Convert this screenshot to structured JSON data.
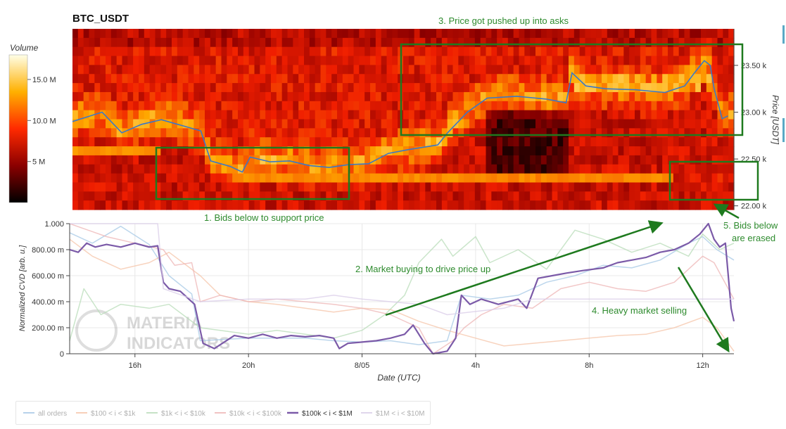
{
  "chart_data": [
    {
      "type": "heatmap",
      "title": "BTC_USDT",
      "ylabel": "Price [USDT]",
      "yticks": [
        "22.00 k",
        "22.50 k",
        "23.00 k",
        "23.50 k"
      ],
      "ylim": [
        21960,
        23890
      ],
      "colorbar": {
        "label": "Volume",
        "ticks": [
          "5 M",
          "10.0 M",
          "15.0 M"
        ],
        "tick_values": [
          5,
          10,
          15
        ],
        "range": [
          0,
          18
        ]
      },
      "price_line": {
        "color": "#3b78c8",
        "points": [
          [
            0,
            22900
          ],
          [
            1.5,
            23000
          ],
          [
            2.5,
            22780
          ],
          [
            3.5,
            22870
          ],
          [
            4.5,
            22920
          ],
          [
            6.5,
            22800
          ],
          [
            7.0,
            22480
          ],
          [
            8.0,
            22420
          ],
          [
            8.6,
            22360
          ],
          [
            9.0,
            22520
          ],
          [
            10.0,
            22470
          ],
          [
            11.0,
            22480
          ],
          [
            12.0,
            22430
          ],
          [
            13.0,
            22410
          ],
          [
            14.0,
            22440
          ],
          [
            15.0,
            22450
          ],
          [
            16.0,
            22560
          ],
          [
            17.0,
            22600
          ],
          [
            18.5,
            22650
          ],
          [
            19.0,
            22780
          ],
          [
            20.0,
            23000
          ],
          [
            21.0,
            23150
          ],
          [
            22.5,
            23170
          ],
          [
            24.0,
            23140
          ],
          [
            25.0,
            23100
          ],
          [
            25.3,
            23420
          ],
          [
            26.0,
            23280
          ],
          [
            27.0,
            23250
          ],
          [
            28.5,
            23240
          ],
          [
            30.0,
            23210
          ],
          [
            31.0,
            23280
          ],
          [
            31.5,
            23420
          ],
          [
            32.0,
            23550
          ],
          [
            32.3,
            23500
          ],
          [
            32.5,
            23250
          ],
          [
            32.9,
            22930
          ],
          [
            33.2,
            22960
          ]
        ]
      },
      "annotations": [
        {
          "text": "3. Price got pushed up into asks"
        },
        {
          "text": "1. Bids below to support price"
        },
        {
          "text": "5. Bids below are erased",
          "lines": [
            "5. Bids below",
            "are erased"
          ]
        }
      ]
    },
    {
      "type": "line",
      "xlabel": "Date (UTC)",
      "ylabel": "Normalized CVD [arb. u.]",
      "x_ticks": [
        "16h",
        "20h",
        "8/05",
        "4h",
        "8h",
        "12h"
      ],
      "x_tick_values": [
        16,
        20,
        24,
        28,
        32,
        36
      ],
      "xlim": [
        13.7,
        37.1
      ],
      "y_ticks": [
        "0",
        "200.00 m",
        "400.00 m",
        "600.00 m",
        "800.00 m",
        "1.000"
      ],
      "y_tick_values": [
        0,
        0.2,
        0.4,
        0.6,
        0.8,
        1.0
      ],
      "ylim": [
        0,
        1.0
      ],
      "grid": true,
      "legend_position": "bottom",
      "series": [
        {
          "name": "all orders",
          "color": "#a6c8e6",
          "faded": true,
          "points": [
            [
              13.7,
              0.93
            ],
            [
              14.5,
              0.85
            ],
            [
              15.5,
              0.98
            ],
            [
              16.5,
              0.84
            ],
            [
              17.2,
              0.6
            ],
            [
              18.0,
              0.46
            ],
            [
              18.3,
              0.1
            ],
            [
              20,
              0.12
            ],
            [
              22,
              0.12
            ],
            [
              23,
              0.1
            ],
            [
              24,
              0.09
            ],
            [
              25,
              0.1
            ],
            [
              26,
              0.07
            ],
            [
              27,
              0.1
            ],
            [
              27.5,
              0.45
            ],
            [
              28.5,
              0.42
            ],
            [
              29.5,
              0.45
            ],
            [
              30.5,
              0.55
            ],
            [
              31.5,
              0.6
            ],
            [
              32.5,
              0.68
            ],
            [
              33.5,
              0.66
            ],
            [
              34.5,
              0.72
            ],
            [
              35.5,
              0.85
            ],
            [
              36,
              0.9
            ],
            [
              36.5,
              0.8
            ],
            [
              37.1,
              0.72
            ]
          ]
        },
        {
          "name": "$100 < i < $1k",
          "color": "#f6c4a8",
          "faded": true,
          "points": [
            [
              13.7,
              0.88
            ],
            [
              14.5,
              0.75
            ],
            [
              15.5,
              0.65
            ],
            [
              16.5,
              0.7
            ],
            [
              17.2,
              0.78
            ],
            [
              18.3,
              0.6
            ],
            [
              19,
              0.45
            ],
            [
              20,
              0.4
            ],
            [
              21,
              0.38
            ],
            [
              22,
              0.35
            ],
            [
              23,
              0.32
            ],
            [
              24,
              0.35
            ],
            [
              25,
              0.34
            ],
            [
              26,
              0.25
            ],
            [
              27,
              0.18
            ],
            [
              28,
              0.12
            ],
            [
              29,
              0.06
            ],
            [
              30,
              0.08
            ],
            [
              31,
              0.1
            ],
            [
              32,
              0.12
            ],
            [
              33,
              0.14
            ],
            [
              34,
              0.15
            ],
            [
              35,
              0.2
            ],
            [
              36,
              0.28
            ],
            [
              36.5,
              0.2
            ],
            [
              37.1,
              0.02
            ]
          ]
        },
        {
          "name": "$1k < i < $10k",
          "color": "#b8dcb8",
          "faded": true,
          "points": [
            [
              13.7,
              0.1
            ],
            [
              14.2,
              0.5
            ],
            [
              14.8,
              0.3
            ],
            [
              15.5,
              0.38
            ],
            [
              16.5,
              0.35
            ],
            [
              17.2,
              0.38
            ],
            [
              18.3,
              0.2
            ],
            [
              19,
              0.18
            ],
            [
              20,
              0.15
            ],
            [
              21,
              0.18
            ],
            [
              22,
              0.15
            ],
            [
              23,
              0.12
            ],
            [
              24,
              0.18
            ],
            [
              24.8,
              0.3
            ],
            [
              25.5,
              0.45
            ],
            [
              26,
              0.7
            ],
            [
              26.8,
              0.88
            ],
            [
              27.2,
              0.75
            ],
            [
              28,
              0.9
            ],
            [
              28.5,
              0.7
            ],
            [
              29.5,
              0.8
            ],
            [
              30.5,
              0.65
            ],
            [
              31.5,
              0.95
            ],
            [
              32.5,
              0.88
            ],
            [
              33.5,
              0.78
            ],
            [
              34.5,
              0.85
            ],
            [
              35.5,
              0.75
            ],
            [
              36,
              0.92
            ],
            [
              36.6,
              0.8
            ],
            [
              37.1,
              0.85
            ]
          ]
        },
        {
          "name": "$10k < i < $100k",
          "color": "#eeb4b4",
          "faded": true,
          "points": [
            [
              13.7,
              1.0
            ],
            [
              15,
              0.9
            ],
            [
              16,
              0.85
            ],
            [
              17,
              0.8
            ],
            [
              17.4,
              0.68
            ],
            [
              18,
              0.7
            ],
            [
              18.3,
              0.4
            ],
            [
              19,
              0.45
            ],
            [
              20,
              0.4
            ],
            [
              21,
              0.42
            ],
            [
              22,
              0.4
            ],
            [
              23,
              0.38
            ],
            [
              24,
              0.35
            ],
            [
              25,
              0.3
            ],
            [
              26,
              0.2
            ],
            [
              26.5,
              0.0
            ],
            [
              27.2,
              0.1
            ],
            [
              27.6,
              0.2
            ],
            [
              28.2,
              0.3
            ],
            [
              29,
              0.38
            ],
            [
              30,
              0.35
            ],
            [
              31,
              0.5
            ],
            [
              32,
              0.55
            ],
            [
              33,
              0.5
            ],
            [
              34,
              0.48
            ],
            [
              35,
              0.55
            ],
            [
              36,
              0.75
            ],
            [
              36.4,
              0.7
            ],
            [
              37.1,
              0.42
            ]
          ]
        },
        {
          "name": "$100k < i < $1M",
          "color": "#7b5aa8",
          "faded": false,
          "points": [
            [
              13.7,
              0.8
            ],
            [
              14.0,
              0.78
            ],
            [
              14.3,
              0.85
            ],
            [
              14.6,
              0.82
            ],
            [
              15.0,
              0.84
            ],
            [
              15.5,
              0.82
            ],
            [
              16.0,
              0.85
            ],
            [
              16.5,
              0.82
            ],
            [
              16.8,
              0.83
            ],
            [
              17.0,
              0.55
            ],
            [
              17.2,
              0.5
            ],
            [
              17.6,
              0.48
            ],
            [
              17.9,
              0.42
            ],
            [
              18.1,
              0.38
            ],
            [
              18.4,
              0.08
            ],
            [
              18.8,
              0.04
            ],
            [
              19.5,
              0.14
            ],
            [
              20.0,
              0.12
            ],
            [
              20.5,
              0.15
            ],
            [
              21.0,
              0.12
            ],
            [
              21.5,
              0.14
            ],
            [
              22.0,
              0.13
            ],
            [
              22.5,
              0.14
            ],
            [
              23.0,
              0.12
            ],
            [
              23.2,
              0.04
            ],
            [
              23.5,
              0.08
            ],
            [
              24.0,
              0.09
            ],
            [
              24.5,
              0.1
            ],
            [
              25.0,
              0.12
            ],
            [
              25.5,
              0.15
            ],
            [
              25.8,
              0.22
            ],
            [
              26.2,
              0.08
            ],
            [
              26.5,
              0.0
            ],
            [
              27.0,
              0.02
            ],
            [
              27.3,
              0.12
            ],
            [
              27.5,
              0.45
            ],
            [
              27.8,
              0.38
            ],
            [
              28.2,
              0.42
            ],
            [
              28.8,
              0.38
            ],
            [
              29.5,
              0.42
            ],
            [
              29.8,
              0.35
            ],
            [
              30.2,
              0.58
            ],
            [
              30.7,
              0.6
            ],
            [
              31.2,
              0.62
            ],
            [
              31.8,
              0.64
            ],
            [
              32.5,
              0.66
            ],
            [
              33.0,
              0.7
            ],
            [
              33.5,
              0.72
            ],
            [
              34.0,
              0.74
            ],
            [
              34.5,
              0.78
            ],
            [
              35.0,
              0.8
            ],
            [
              35.5,
              0.85
            ],
            [
              35.9,
              0.92
            ],
            [
              36.2,
              1.0
            ],
            [
              36.4,
              0.88
            ],
            [
              36.6,
              0.82
            ],
            [
              36.8,
              0.85
            ],
            [
              37.0,
              0.35
            ],
            [
              37.1,
              0.25
            ]
          ]
        },
        {
          "name": "$1M < i < $10M",
          "color": "#d9cce8",
          "faded": true,
          "points": [
            [
              13.7,
              1.0
            ],
            [
              16.8,
              1.0
            ],
            [
              17.0,
              0.5
            ],
            [
              18.3,
              0.4
            ],
            [
              20,
              0.42
            ],
            [
              22,
              0.42
            ],
            [
              23,
              0.45
            ],
            [
              24,
              0.42
            ],
            [
              26,
              0.38
            ],
            [
              27,
              0.3
            ],
            [
              29,
              0.35
            ],
            [
              30,
              0.42
            ],
            [
              33,
              0.42
            ],
            [
              35,
              0.42
            ],
            [
              37.1,
              0.42
            ]
          ]
        }
      ],
      "annotations": [
        {
          "text": "2. Market buying to drive price up"
        },
        {
          "text": "4. Heavy market selling"
        }
      ]
    }
  ],
  "watermark": {
    "line1": "MATERIA",
    "line2": "INDICATORS"
  },
  "colors": {
    "annotation": "#2e8b2e",
    "box": "#1e7a1e"
  }
}
